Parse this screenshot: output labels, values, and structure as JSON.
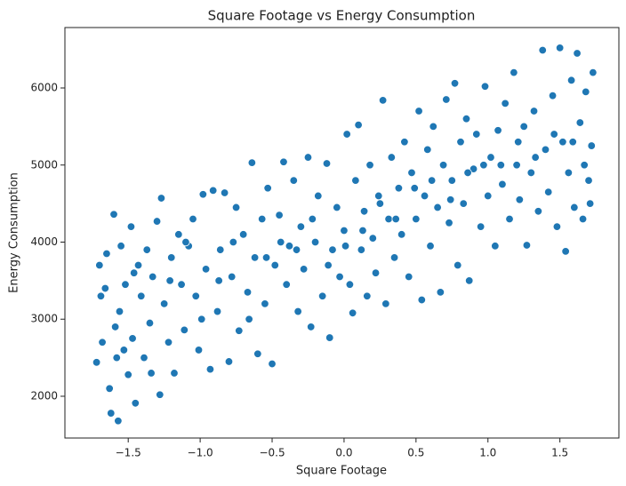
{
  "chart_data": {
    "type": "scatter",
    "title": "Square Footage vs Energy Consumption",
    "x_label": "Square Footage",
    "y_label": "Energy Consumption",
    "color": "#1f77b4",
    "grid": false,
    "xlim": [
      -1.94,
      1.91
    ],
    "ylim": [
      1458,
      6784
    ],
    "xticks": [
      {
        "value": -1.5,
        "label": "−1.5"
      },
      {
        "value": -1,
        "label": "−1.0"
      },
      {
        "value": -0.5,
        "label": "−0.5"
      },
      {
        "value": 0,
        "label": "0.0"
      },
      0.5,
      {
        "value": 1,
        "label": "1.0"
      },
      1.5
    ],
    "yticks": [
      2000,
      3000,
      4000,
      5000,
      6000
    ],
    "x": [
      -1.72,
      -1.7,
      -1.68,
      -1.66,
      -1.65,
      -1.63,
      -1.62,
      -1.6,
      -1.59,
      -1.57,
      -1.56,
      -1.55,
      -1.53,
      -1.52,
      -1.5,
      -1.48,
      -1.47,
      -1.45,
      -1.43,
      -1.41,
      -1.39,
      -1.37,
      -1.35,
      -1.33,
      -1.3,
      -1.28,
      -1.27,
      -1.25,
      -1.22,
      -1.2,
      -1.18,
      -1.15,
      -1.13,
      -1.11,
      -1.08,
      -1.05,
      -1.03,
      -1.01,
      -0.98,
      -0.96,
      -0.93,
      -0.91,
      -0.88,
      -0.86,
      -0.83,
      -0.8,
      -0.78,
      -0.75,
      -0.73,
      -0.7,
      -0.67,
      -0.64,
      -0.62,
      -0.6,
      -0.57,
      -0.55,
      -0.53,
      -0.5,
      -0.48,
      -0.45,
      -0.42,
      -0.4,
      -0.38,
      -0.35,
      -0.32,
      -0.3,
      -0.28,
      -0.25,
      -0.23,
      -0.2,
      -0.18,
      -0.15,
      -0.12,
      -0.1,
      -0.08,
      -0.05,
      -0.03,
      0.0,
      0.02,
      0.04,
      0.06,
      0.08,
      0.1,
      0.12,
      0.14,
      0.16,
      0.18,
      0.2,
      0.22,
      0.24,
      0.27,
      0.29,
      0.31,
      0.33,
      0.35,
      0.38,
      0.4,
      0.42,
      0.45,
      0.47,
      0.5,
      0.52,
      0.54,
      0.56,
      0.58,
      0.6,
      0.62,
      0.65,
      0.67,
      0.69,
      0.71,
      0.73,
      0.75,
      0.77,
      0.79,
      0.81,
      0.83,
      0.85,
      0.87,
      0.9,
      0.92,
      0.95,
      0.98,
      1.0,
      1.02,
      1.05,
      1.07,
      1.1,
      1.12,
      1.15,
      1.18,
      1.2,
      1.22,
      1.25,
      1.27,
      1.3,
      1.32,
      1.35,
      1.38,
      1.4,
      1.42,
      1.45,
      1.48,
      1.5,
      1.52,
      1.54,
      1.56,
      1.58,
      1.6,
      1.62,
      1.64,
      1.66,
      1.68,
      1.7,
      1.72,
      1.73,
      1.71,
      -1.69,
      -1.58,
      -1.46,
      -1.34,
      -1.21,
      -1.1,
      -0.99,
      -0.87,
      -0.77,
      -0.66,
      -0.54,
      -0.44,
      -0.33,
      -0.22,
      -0.11,
      0.01,
      0.13,
      0.25,
      0.36,
      0.49,
      0.61,
      0.74,
      0.86,
      0.97,
      1.09,
      1.21,
      1.33,
      1.46,
      1.59,
      1.67
    ],
    "values": [
      2440,
      3700,
      2700,
      3400,
      3850,
      2100,
      1780,
      4360,
      2900,
      1680,
      3100,
      3950,
      2600,
      3450,
      2280,
      4200,
      2750,
      1910,
      3700,
      3300,
      2500,
      3900,
      2950,
      3550,
      4270,
      2020,
      4570,
      3200,
      2700,
      3800,
      2300,
      4100,
      3450,
      2860,
      3950,
      4300,
      3300,
      2600,
      4620,
      3650,
      2350,
      4670,
      3100,
      3900,
      4640,
      2450,
      3550,
      4450,
      2850,
      4100,
      3350,
      5030,
      3800,
      2550,
      4300,
      3200,
      4700,
      2420,
      3700,
      4350,
      5040,
      3450,
      3950,
      4800,
      3100,
      4200,
      3650,
      5100,
      2900,
      4000,
      4600,
      3300,
      5020,
      2760,
      3900,
      4450,
      3550,
      4150,
      5400,
      3450,
      3080,
      4800,
      5520,
      3900,
      4400,
      3300,
      5000,
      4050,
      3600,
      4600,
      5840,
      3200,
      4300,
      5100,
      3800,
      4700,
      4100,
      5300,
      3550,
      4900,
      4300,
      5700,
      3250,
      4600,
      5200,
      3950,
      5500,
      4450,
      3350,
      5000,
      5850,
      4250,
      4800,
      6060,
      3700,
      5300,
      4500,
      5600,
      3500,
      4950,
      5400,
      4200,
      6020,
      4600,
      5100,
      3950,
      5450,
      4750,
      5800,
      4300,
      6200,
      5000,
      4550,
      5500,
      3960,
      4900,
      5700,
      4400,
      6490,
      5200,
      4650,
      5900,
      4200,
      6520,
      5300,
      3880,
      4900,
      6100,
      4450,
      6450,
      5550,
      4300,
      5950,
      4800,
      5250,
      6200,
      4500,
      3300,
      2500,
      3600,
      2300,
      3500,
      4000,
      3000,
      3500,
      4000,
      3000,
      3800,
      4000,
      3900,
      4300,
      3700,
      3950,
      4150,
      4500,
      4300,
      4700,
      4800,
      4550,
      4900,
      5000,
      5000,
      5300,
      5100,
      5400,
      5300,
      5000
    ]
  }
}
